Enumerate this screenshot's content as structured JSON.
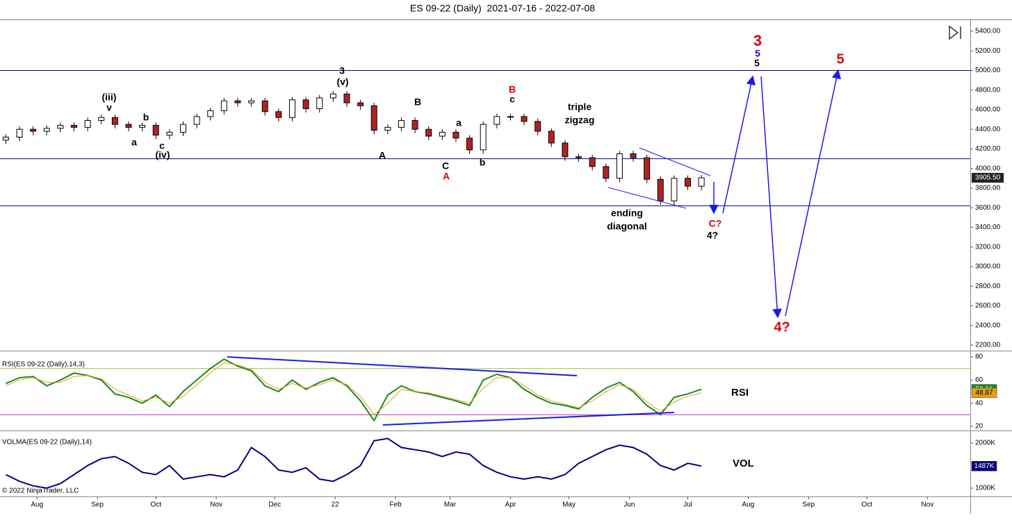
{
  "chart_data": [
    {
      "type": "candlestick",
      "title": "ES 09-22 (Daily)  2021-07-16 - 2022-07-08",
      "x": [
        "2021-07-16",
        "2021-07-23",
        "2021-07-30",
        "2021-08-06",
        "2021-08-13",
        "2021-08-20",
        "2021-08-27",
        "2021-09-03",
        "2021-09-10",
        "2021-09-17",
        "2021-09-24",
        "2021-10-01",
        "2021-10-08",
        "2021-10-15",
        "2021-10-22",
        "2021-10-29",
        "2021-11-05",
        "2021-11-12",
        "2021-11-19",
        "2021-11-26",
        "2021-12-03",
        "2021-12-10",
        "2021-12-17",
        "2021-12-24",
        "2021-12-31",
        "2022-01-07",
        "2022-01-14",
        "2022-01-21",
        "2022-01-28",
        "2022-02-04",
        "2022-02-11",
        "2022-02-18",
        "2022-02-25",
        "2022-03-04",
        "2022-03-11",
        "2022-03-18",
        "2022-03-25",
        "2022-04-01",
        "2022-04-08",
        "2022-04-15",
        "2022-04-22",
        "2022-04-29",
        "2022-05-06",
        "2022-05-13",
        "2022-05-20",
        "2022-05-27",
        "2022-06-03",
        "2022-06-10",
        "2022-06-17",
        "2022-06-24",
        "2022-07-01",
        "2022-07-08"
      ],
      "open": [
        4290,
        4320,
        4400,
        4380,
        4410,
        4440,
        4420,
        4490,
        4520,
        4450,
        4420,
        4440,
        4340,
        4370,
        4450,
        4530,
        4590,
        4690,
        4670,
        4690,
        4580,
        4520,
        4700,
        4610,
        4720,
        4760,
        4670,
        4640,
        4390,
        4420,
        4490,
        4400,
        4330,
        4370,
        4310,
        4190,
        4450,
        4530,
        4530,
        4480,
        4380,
        4260,
        4120,
        4110,
        4020,
        3900,
        4150,
        4110,
        3890,
        3670,
        3900,
        3820
      ],
      "high": [
        4350,
        4430,
        4430,
        4440,
        4470,
        4470,
        4520,
        4550,
        4550,
        4480,
        4470,
        4470,
        4400,
        4480,
        4560,
        4620,
        4720,
        4720,
        4720,
        4720,
        4610,
        4730,
        4730,
        4750,
        4790,
        4790,
        4700,
        4670,
        4450,
        4520,
        4520,
        4430,
        4400,
        4400,
        4340,
        4480,
        4560,
        4560,
        4560,
        4510,
        4410,
        4290,
        4150,
        4140,
        4050,
        4180,
        4180,
        4140,
        3920,
        3930,
        3930,
        3935
      ],
      "low": [
        4250,
        4280,
        4340,
        4340,
        4370,
        4380,
        4380,
        4450,
        4410,
        4380,
        4380,
        4300,
        4300,
        4330,
        4410,
        4490,
        4550,
        4630,
        4630,
        4540,
        4480,
        4480,
        4570,
        4570,
        4680,
        4630,
        4600,
        4350,
        4350,
        4380,
        4360,
        4290,
        4290,
        4270,
        4150,
        4150,
        4410,
        4490,
        4440,
        4340,
        4220,
        4080,
        4070,
        3980,
        3860,
        3860,
        4070,
        3850,
        3630,
        3630,
        3780,
        3780
      ],
      "close": [
        4320,
        4400,
        4380,
        4410,
        4440,
        4420,
        4490,
        4520,
        4450,
        4420,
        4440,
        4340,
        4370,
        4450,
        4530,
        4590,
        4690,
        4670,
        4690,
        4580,
        4520,
        4700,
        4610,
        4720,
        4760,
        4670,
        4640,
        4390,
        4420,
        4490,
        4400,
        4330,
        4370,
        4310,
        4190,
        4450,
        4530,
        4530,
        4480,
        4380,
        4260,
        4120,
        4110,
        4020,
        3900,
        4150,
        4110,
        3890,
        3670,
        3900,
        3820,
        3905.5
      ],
      "value_labels": [
        null,
        null,
        null,
        null,
        null,
        null,
        null,
        null,
        null,
        null,
        null,
        null,
        null,
        null,
        null,
        null,
        null,
        null,
        null,
        null,
        null,
        null,
        null,
        null,
        null,
        null,
        null,
        null,
        null,
        null,
        null,
        null,
        null,
        null,
        null,
        null,
        null,
        null,
        null,
        null,
        null,
        null,
        null,
        null,
        null,
        null,
        null,
        null,
        null,
        null,
        null,
        "3905.50"
      ],
      "up_color": "#ffffff",
      "down_color": "#b22222",
      "edge_color": "#000000",
      "xlim": [
        "2021-07-13",
        "2022-11-23"
      ],
      "xticks": [
        {
          "value": "2021-08-01",
          "label": "Aug"
        },
        {
          "value": "2021-09-01",
          "label": "Sep"
        },
        {
          "value": "2021-10-01",
          "label": "Oct"
        },
        {
          "value": "2021-11-01",
          "label": "Nov"
        },
        {
          "value": "2021-12-01",
          "label": "Dec"
        },
        {
          "value": "2022-01-01",
          "label": "22"
        },
        {
          "value": "2022-02-01",
          "label": "Feb"
        },
        {
          "value": "2022-03-01",
          "label": "Mar"
        },
        {
          "value": "2022-04-01",
          "label": "Apr"
        },
        {
          "value": "2022-05-01",
          "label": "May"
        },
        {
          "value": "2022-06-01",
          "label": "Jun"
        },
        {
          "value": "2022-07-01",
          "label": "Jul"
        },
        {
          "value": "2022-08-01",
          "label": "Aug"
        },
        {
          "value": "2022-09-01",
          "label": "Sep"
        },
        {
          "value": "2022-10-01",
          "label": "Oct"
        },
        {
          "value": "2022-11-01",
          "label": "Nov"
        }
      ],
      "ylim": [
        2143,
        5520
      ],
      "yticks": [
        {
          "value": 2200,
          "label": "2200.00"
        },
        {
          "value": 2400,
          "label": "2400.00"
        },
        {
          "value": 2600,
          "label": "2600.00"
        },
        {
          "value": 2800,
          "label": "2800.00"
        },
        {
          "value": 3000,
          "label": "3000.00"
        },
        {
          "value": 3200,
          "label": "3200.00"
        },
        {
          "value": 3400,
          "label": "3400.00"
        },
        {
          "value": 3600,
          "label": "3600.00"
        },
        {
          "value": 3800,
          "label": "3800.00"
        },
        {
          "value": 4000,
          "label": "4000.00"
        },
        {
          "value": 4200,
          "label": "4200.00"
        },
        {
          "value": 4400,
          "label": "4400.00"
        },
        {
          "value": 4600,
          "label": "4600.00"
        },
        {
          "value": 4800,
          "label": "4800.00"
        },
        {
          "value": 5000,
          "label": "5000.00"
        },
        {
          "value": 5200,
          "label": "5200.00"
        },
        {
          "value": 5400,
          "label": "5400.00"
        }
      ],
      "hlines": [
        5000,
        4100,
        3620
      ],
      "hline_color": "#000080",
      "annotations": [
        "(iii)",
        "v",
        "b",
        "a",
        "c",
        "(iv)",
        "3",
        "(v)",
        "A",
        "B",
        "a",
        "C",
        "A",
        "b",
        "B",
        "c",
        "triple",
        "zigzag",
        "ending",
        "diagonal",
        "C?",
        "4?",
        "3",
        "5",
        "5",
        "5",
        "4?"
      ],
      "copyright": "© 2022 NinjaTrader, LLC"
    },
    {
      "type": "line",
      "title": "RSI(ES 09-22 (Daily),14,3)",
      "label": "RSI",
      "series": [
        {
          "name": "RSI",
          "color": "#1a8a1a",
          "values": [
            57,
            62,
            63,
            55,
            60,
            66,
            64,
            60,
            48,
            45,
            40,
            47,
            37,
            50,
            60,
            70,
            78,
            72,
            68,
            55,
            50,
            60,
            52,
            58,
            62,
            55,
            42,
            25,
            47,
            55,
            50,
            48,
            45,
            42,
            38,
            60,
            65,
            62,
            52,
            45,
            40,
            38,
            35,
            45,
            53,
            58,
            50,
            38,
            30,
            45,
            48,
            52.01
          ]
        },
        {
          "name": "Avg",
          "color": "#e0a020",
          "values": [
            55,
            60,
            62,
            58,
            58,
            63,
            64,
            61,
            52,
            47,
            42,
            45,
            40,
            46,
            56,
            66,
            75,
            73,
            69,
            58,
            52,
            57,
            53,
            56,
            60,
            56,
            46,
            30,
            40,
            52,
            50,
            49,
            46,
            43,
            40,
            53,
            62,
            62,
            55,
            47,
            42,
            39,
            36,
            42,
            50,
            56,
            52,
            41,
            33,
            41,
            46,
            48.87
          ]
        }
      ],
      "ylim": [
        16.4,
        85.4
      ],
      "yticks": [
        20,
        40,
        60,
        80
      ],
      "hlines": [
        70,
        30
      ],
      "hline_colors": [
        "#9acd32",
        "#cc33cc"
      ]
    },
    {
      "type": "line",
      "title": "VOLMA(ES 09-22 (Daily),14)",
      "label": "VOL",
      "series": [
        {
          "name": "VOLMA",
          "color": "#000080",
          "values": [
            1300000,
            1150000,
            1050000,
            1000000,
            1100000,
            1300000,
            1500000,
            1650000,
            1700000,
            1550000,
            1350000,
            1300000,
            1500000,
            1200000,
            1250000,
            1300000,
            1250000,
            1400000,
            1900000,
            1700000,
            1400000,
            1350000,
            1450000,
            1200000,
            1150000,
            1300000,
            1500000,
            2050000,
            2100000,
            1900000,
            1850000,
            1800000,
            1700000,
            1800000,
            1750000,
            1500000,
            1350000,
            1250000,
            1200000,
            1250000,
            1200000,
            1300000,
            1550000,
            1700000,
            1850000,
            1950000,
            1900000,
            1750000,
            1500000,
            1400000,
            1550000,
            1487000
          ],
          "value_labels": [
            null,
            null,
            null,
            null,
            null,
            null,
            null,
            null,
            null,
            null,
            null,
            null,
            null,
            null,
            null,
            null,
            null,
            null,
            null,
            null,
            null,
            null,
            null,
            null,
            null,
            null,
            null,
            null,
            null,
            null,
            null,
            null,
            null,
            null,
            null,
            null,
            null,
            null,
            null,
            null,
            null,
            null,
            null,
            null,
            null,
            null,
            null,
            null,
            null,
            null,
            null,
            "1487K"
          ]
        }
      ],
      "ylim": [
        815000,
        2277000
      ],
      "yticks": [
        {
          "value": 1000000,
          "label": "1000K"
        },
        {
          "value": 2000000,
          "label": "2000K"
        }
      ]
    }
  ]
}
